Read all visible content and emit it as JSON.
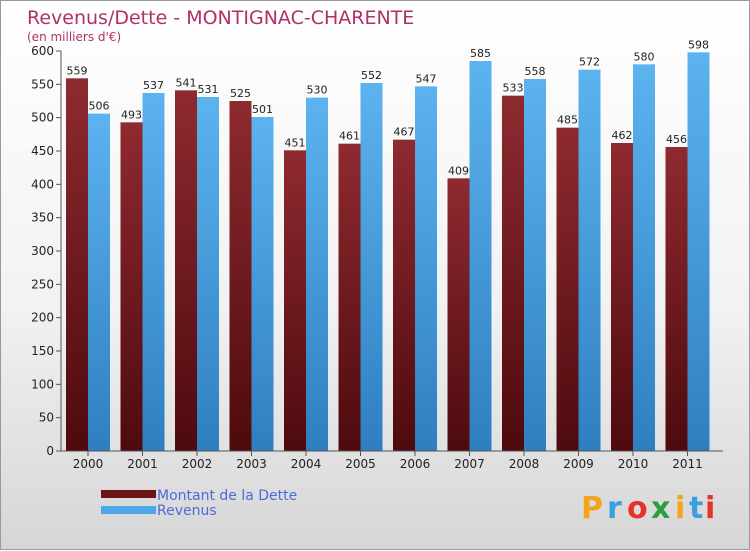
{
  "chart_data": {
    "type": "bar",
    "title": "Revenus/Dette - MONTIGNAC-CHARENTE",
    "subtitle": "(en milliers d'€)",
    "categories": [
      "2000",
      "2001",
      "2002",
      "2003",
      "2004",
      "2005",
      "2006",
      "2007",
      "2008",
      "2009",
      "2010",
      "2011"
    ],
    "series": [
      {
        "name": "Montant de la Dette",
        "color": "#7a1f24",
        "values": [
          559,
          493,
          541,
          525,
          451,
          461,
          467,
          409,
          533,
          485,
          462,
          456
        ]
      },
      {
        "name": "Revenus",
        "color": "#4ea7e8",
        "values": [
          506,
          537,
          531,
          501,
          530,
          552,
          547,
          585,
          558,
          572,
          580,
          598
        ]
      }
    ],
    "ylim": [
      0,
      600
    ],
    "yticks": [
      0,
      50,
      100,
      150,
      200,
      250,
      300,
      350,
      400,
      450,
      500,
      550,
      600
    ],
    "grid": false,
    "legend_position": "bottom-left"
  },
  "branding": {
    "logo_letters": [
      "P",
      "r",
      "o",
      "x",
      "i",
      "t",
      "i"
    ],
    "logo_colors": [
      "#f2a41c",
      "#3aa0de",
      "#e6332a",
      "#2a9d3c",
      "#f2a41c",
      "#3aa0de",
      "#e6332a"
    ]
  }
}
